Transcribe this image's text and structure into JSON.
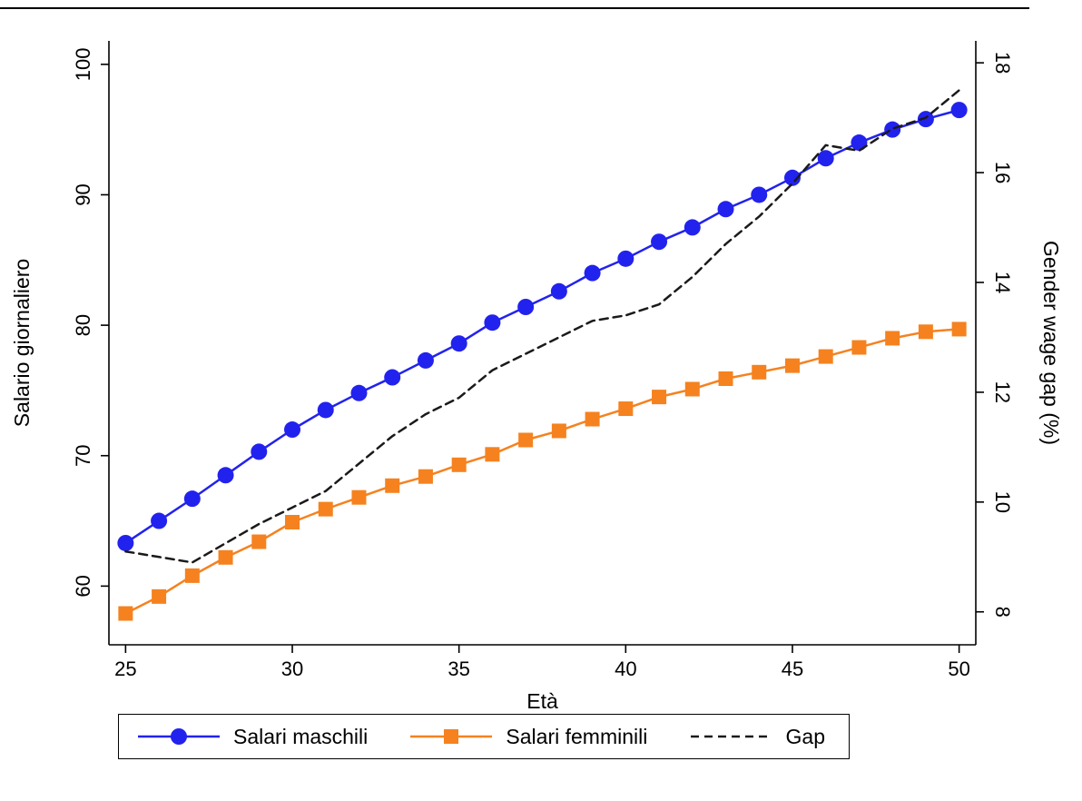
{
  "page": {
    "background": "#ffffff"
  },
  "chart_data": {
    "type": "line",
    "title": "",
    "xlabel": "Età",
    "x": [
      25,
      26,
      27,
      28,
      29,
      30,
      31,
      32,
      33,
      34,
      35,
      36,
      37,
      38,
      39,
      40,
      41,
      42,
      43,
      44,
      45,
      46,
      47,
      48,
      49,
      50
    ],
    "xlim": [
      24.5,
      50.5
    ],
    "x_ticks": [
      25,
      30,
      35,
      40,
      45,
      50
    ],
    "grid": false,
    "left_axis": {
      "label": "Salario giornaliero",
      "ticks": [
        60,
        70,
        80,
        90,
        100
      ],
      "lim": [
        55.5,
        101.8
      ]
    },
    "right_axis": {
      "label": "Gender wage gap (%)",
      "ticks": [
        8,
        10,
        12,
        14,
        16,
        18
      ],
      "lim": [
        7.4,
        18.4
      ]
    },
    "series": [
      {
        "name": "Salari maschili",
        "axis": "left",
        "color": "#2222ee",
        "marker": "circle",
        "dash": null,
        "values": [
          63.3,
          65.0,
          66.7,
          68.5,
          70.3,
          72.0,
          73.5,
          74.8,
          76.0,
          77.3,
          78.6,
          80.2,
          81.4,
          82.6,
          84.0,
          85.1,
          86.4,
          87.5,
          88.9,
          90.0,
          91.3,
          92.8,
          94.0,
          95.0,
          95.8,
          96.5
        ]
      },
      {
        "name": "Salari femminili",
        "axis": "left",
        "color": "#f5821f",
        "marker": "square",
        "dash": null,
        "values": [
          57.9,
          59.2,
          60.8,
          62.2,
          63.4,
          64.9,
          65.9,
          66.8,
          67.7,
          68.4,
          69.3,
          70.1,
          71.2,
          71.9,
          72.8,
          73.6,
          74.5,
          75.1,
          75.9,
          76.4,
          76.9,
          77.6,
          78.3,
          79.0,
          79.5,
          79.7
        ]
      },
      {
        "name": "Gap",
        "axis": "right",
        "color": "#1a1a1a",
        "marker": null,
        "dash": "9 6",
        "values": [
          9.1,
          9.0,
          8.9,
          9.25,
          9.6,
          9.9,
          10.2,
          10.7,
          11.2,
          11.6,
          11.9,
          12.4,
          12.7,
          13.0,
          13.3,
          13.4,
          13.6,
          14.1,
          14.7,
          15.2,
          15.8,
          16.5,
          16.4,
          16.8,
          17.0,
          17.5
        ]
      }
    ],
    "legend": {
      "position": "bottom",
      "border": true,
      "entries": [
        "Salari maschili",
        "Salari femminili",
        "Gap"
      ]
    }
  }
}
